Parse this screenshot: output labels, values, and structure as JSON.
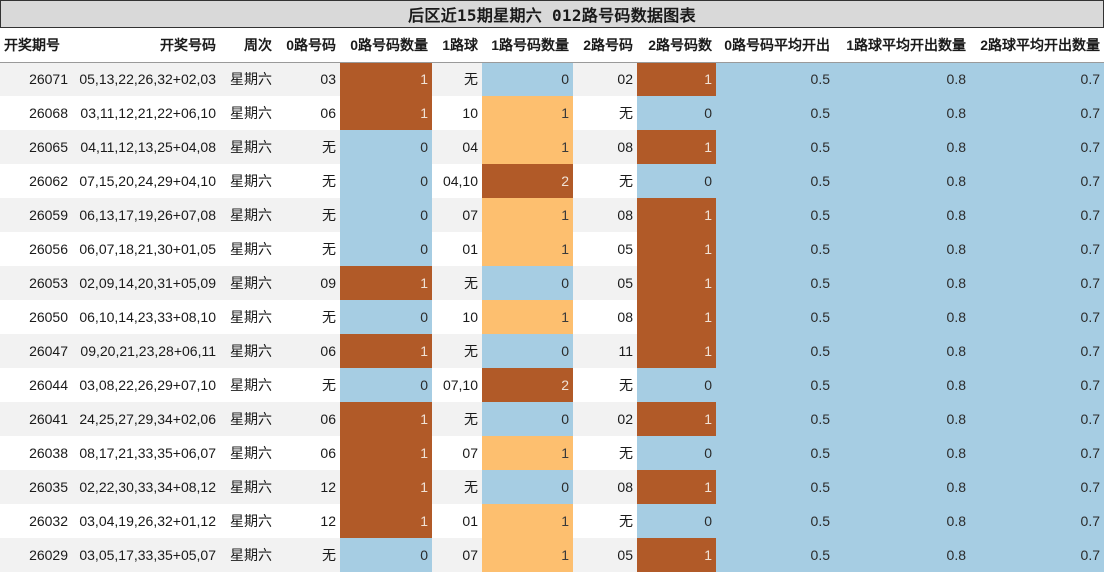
{
  "title": "后区近15期星期六 012路号码数据图表",
  "colors": {
    "blue": "#a6cde3",
    "brown": "#b15a28",
    "orange": "#fdbf6f"
  },
  "headers": [
    "开奖期号",
    "开奖号码",
    "周次",
    "0路号码",
    "0路号码数量",
    "1路球",
    "1路号码数量",
    "2路号码",
    "2路号码数",
    "0路号码平均开出",
    "1路球平均开出数量",
    "2路球平均开出数量"
  ],
  "rows": [
    {
      "issue": "26071",
      "numbers": "05,13,22,26,32+02,03",
      "weekday": "星期六",
      "r0": "03",
      "r0_count": "1",
      "r1": "无",
      "r1_count": "0",
      "r2": "02",
      "r2_count": "1",
      "avg0": "0.5",
      "avg1": "0.8",
      "avg2": "0.7"
    },
    {
      "issue": "26068",
      "numbers": "03,11,12,21,22+06,10",
      "weekday": "星期六",
      "r0": "06",
      "r0_count": "1",
      "r1": "10",
      "r1_count": "1",
      "r2": "无",
      "r2_count": "0",
      "avg0": "0.5",
      "avg1": "0.8",
      "avg2": "0.7"
    },
    {
      "issue": "26065",
      "numbers": "04,11,12,13,25+04,08",
      "weekday": "星期六",
      "r0": "无",
      "r0_count": "0",
      "r1": "04",
      "r1_count": "1",
      "r2": "08",
      "r2_count": "1",
      "avg0": "0.5",
      "avg1": "0.8",
      "avg2": "0.7"
    },
    {
      "issue": "26062",
      "numbers": "07,15,20,24,29+04,10",
      "weekday": "星期六",
      "r0": "无",
      "r0_count": "0",
      "r1": "04,10",
      "r1_count": "2",
      "r2": "无",
      "r2_count": "0",
      "avg0": "0.5",
      "avg1": "0.8",
      "avg2": "0.7"
    },
    {
      "issue": "26059",
      "numbers": "06,13,17,19,26+07,08",
      "weekday": "星期六",
      "r0": "无",
      "r0_count": "0",
      "r1": "07",
      "r1_count": "1",
      "r2": "08",
      "r2_count": "1",
      "avg0": "0.5",
      "avg1": "0.8",
      "avg2": "0.7"
    },
    {
      "issue": "26056",
      "numbers": "06,07,18,21,30+01,05",
      "weekday": "星期六",
      "r0": "无",
      "r0_count": "0",
      "r1": "01",
      "r1_count": "1",
      "r2": "05",
      "r2_count": "1",
      "avg0": "0.5",
      "avg1": "0.8",
      "avg2": "0.7"
    },
    {
      "issue": "26053",
      "numbers": "02,09,14,20,31+05,09",
      "weekday": "星期六",
      "r0": "09",
      "r0_count": "1",
      "r1": "无",
      "r1_count": "0",
      "r2": "05",
      "r2_count": "1",
      "avg0": "0.5",
      "avg1": "0.8",
      "avg2": "0.7"
    },
    {
      "issue": "26050",
      "numbers": "06,10,14,23,33+08,10",
      "weekday": "星期六",
      "r0": "无",
      "r0_count": "0",
      "r1": "10",
      "r1_count": "1",
      "r2": "08",
      "r2_count": "1",
      "avg0": "0.5",
      "avg1": "0.8",
      "avg2": "0.7"
    },
    {
      "issue": "26047",
      "numbers": "09,20,21,23,28+06,11",
      "weekday": "星期六",
      "r0": "06",
      "r0_count": "1",
      "r1": "无",
      "r1_count": "0",
      "r2": "11",
      "r2_count": "1",
      "avg0": "0.5",
      "avg1": "0.8",
      "avg2": "0.7"
    },
    {
      "issue": "26044",
      "numbers": "03,08,22,26,29+07,10",
      "weekday": "星期六",
      "r0": "无",
      "r0_count": "0",
      "r1": "07,10",
      "r1_count": "2",
      "r2": "无",
      "r2_count": "0",
      "avg0": "0.5",
      "avg1": "0.8",
      "avg2": "0.7"
    },
    {
      "issue": "26041",
      "numbers": "24,25,27,29,34+02,06",
      "weekday": "星期六",
      "r0": "06",
      "r0_count": "1",
      "r1": "无",
      "r1_count": "0",
      "r2": "02",
      "r2_count": "1",
      "avg0": "0.5",
      "avg1": "0.8",
      "avg2": "0.7"
    },
    {
      "issue": "26038",
      "numbers": "08,17,21,33,35+06,07",
      "weekday": "星期六",
      "r0": "06",
      "r0_count": "1",
      "r1": "07",
      "r1_count": "1",
      "r2": "无",
      "r2_count": "0",
      "avg0": "0.5",
      "avg1": "0.8",
      "avg2": "0.7"
    },
    {
      "issue": "26035",
      "numbers": "02,22,30,33,34+08,12",
      "weekday": "星期六",
      "r0": "12",
      "r0_count": "1",
      "r1": "无",
      "r1_count": "0",
      "r2": "08",
      "r2_count": "1",
      "avg0": "0.5",
      "avg1": "0.8",
      "avg2": "0.7"
    },
    {
      "issue": "26032",
      "numbers": "03,04,19,26,32+01,12",
      "weekday": "星期六",
      "r0": "12",
      "r0_count": "1",
      "r1": "01",
      "r1_count": "1",
      "r2": "无",
      "r2_count": "0",
      "avg0": "0.5",
      "avg1": "0.8",
      "avg2": "0.7"
    },
    {
      "issue": "26029",
      "numbers": "03,05,17,33,35+05,07",
      "weekday": "星期六",
      "r0": "无",
      "r0_count": "0",
      "r1": "07",
      "r1_count": "1",
      "r2": "05",
      "r2_count": "1",
      "avg0": "0.5",
      "avg1": "0.8",
      "avg2": "0.7"
    }
  ]
}
